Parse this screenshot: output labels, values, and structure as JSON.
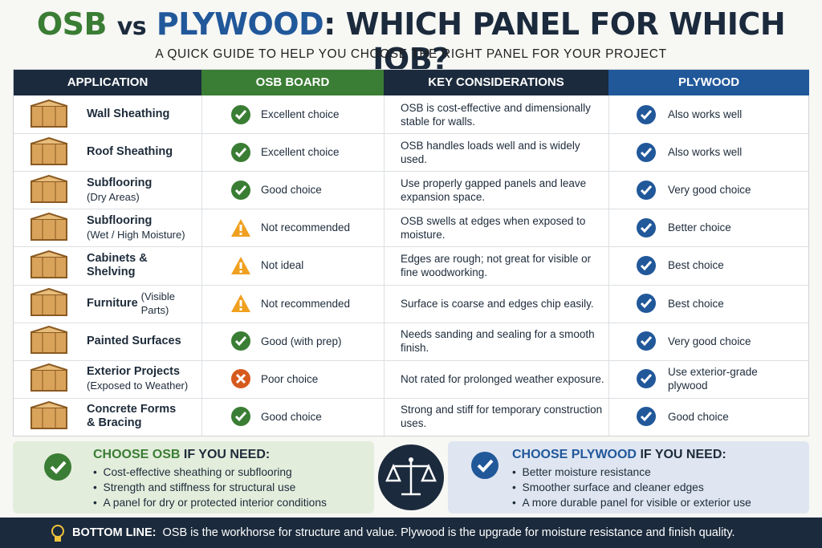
{
  "header": {
    "title_osb": "OSB",
    "title_vs": "vs",
    "title_plywood": "PLYWOOD",
    "title_rest": ": WHICH PANEL FOR WHICH JOB?",
    "subtitle": "A QUICK GUIDE TO HELP YOU CHOOSE THE RIGHT PANEL FOR YOUR PROJECT"
  },
  "table": {
    "columns": [
      "APPLICATION",
      "OSB BOARD",
      "KEY CONSIDERATIONS",
      "PLYWOOD"
    ],
    "rows": [
      {
        "name": "Wall Sheathing",
        "osb": "Excellent choice",
        "osb_icon": "check",
        "note": "OSB is cost-effective and dimensionally stable for walls.",
        "plywood": "Also works well"
      },
      {
        "name": "Roof Sheathing",
        "osb": "Excellent choice",
        "osb_icon": "check",
        "note": "OSB handles loads well and is widely used.",
        "plywood": "Also works well"
      },
      {
        "name": "Subflooring",
        "detail": "(Dry Areas)",
        "osb": "Good choice",
        "osb_icon": "check",
        "note": "Use properly gapped panels and leave expansion space.",
        "plywood": "Very good choice"
      },
      {
        "name": "Subflooring",
        "detail": "(Wet / High Moisture)",
        "osb": "Not recommended",
        "osb_icon": "warn",
        "note": "OSB swells at edges when exposed to moisture.",
        "plywood": "Better choice"
      },
      {
        "name": "Cabinets & Shelving",
        "osb": "Not ideal",
        "osb_icon": "warn",
        "note": "Edges are rough; not great for visible or fine woodworking.",
        "plywood": "Best choice"
      },
      {
        "name": "Furniture",
        "detail": "(Visible Parts)",
        "inline": true,
        "osb": "Not recommended",
        "osb_icon": "warn",
        "note": "Surface is coarse and edges chip easily.",
        "plywood": "Best choice"
      },
      {
        "name": "Painted Surfaces",
        "osb": "Good (with prep)",
        "osb_icon": "check",
        "note": "Needs sanding and sealing for a smooth finish.",
        "plywood": "Very good choice"
      },
      {
        "name": "Exterior Projects",
        "detail": "(Exposed to Weather)",
        "osb": "Poor choice",
        "osb_icon": "cross",
        "note": "Not rated for prolonged weather exposure.",
        "plywood": "Use exterior-grade plywood"
      },
      {
        "name": "Concrete Forms\n& Bracing",
        "osb": "Good choice",
        "osb_icon": "check",
        "note": "Strong and stiff for temporary construction uses.",
        "plywood": "Good choice"
      }
    ]
  },
  "osb_box": {
    "heading": "CHOOSE OSB",
    "heading_rest": "IF YOU NEED:",
    "items": [
      "Cost-effective sheathing or subflooring",
      "Strength and stiffness for structural use",
      "A panel for dry or protected interior conditions"
    ]
  },
  "plywood_box": {
    "heading": "CHOOSE PLYWOOD",
    "heading_rest": "IF YOU NEED:",
    "items": [
      "Better moisture resistance",
      "Smoother surface and cleaner edges",
      "A more durable panel for visible or exterior use"
    ]
  },
  "bottom_line": {
    "label": "BOTTOM LINE:",
    "text": "OSB is the workhorse for structure and value.  Plywood is the upgrade for moisture resistance and finish quality."
  }
}
